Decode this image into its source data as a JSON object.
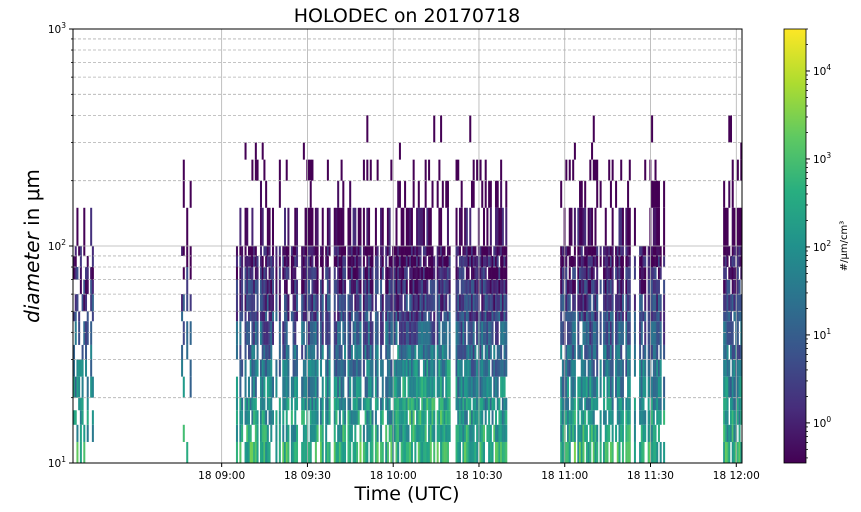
{
  "chart_data": {
    "type": "heatmap",
    "title": "HOLODEC on 20170718",
    "xlabel": "Time (UTC)",
    "ylabel": {
      "italic": "diameter",
      "rest": " in μm"
    },
    "x_range_minutes": [
      488,
      722
    ],
    "x_ticks": [
      {
        "minutes": 540,
        "label": "18 09:00"
      },
      {
        "minutes": 570,
        "label": "18 09:30"
      },
      {
        "minutes": 600,
        "label": "18 10:00"
      },
      {
        "minutes": 630,
        "label": "18 10:30"
      },
      {
        "minutes": 660,
        "label": "18 11:00"
      },
      {
        "minutes": 690,
        "label": "18 11:30"
      },
      {
        "minutes": 720,
        "label": "18 12:00"
      }
    ],
    "y_scale": "log",
    "ylim": [
      10,
      1000
    ],
    "y_ticks": [
      {
        "value": 10,
        "base": "10",
        "exp": "1"
      },
      {
        "value": 100,
        "base": "10",
        "exp": "2"
      },
      {
        "value": 1000,
        "base": "10",
        "exp": "3"
      }
    ],
    "grid": true,
    "colormap": "viridis",
    "colorbar": {
      "label": "#/μm/cm³",
      "scale": "log",
      "range": [
        0.35,
        30000
      ],
      "ticks": [
        {
          "value": 1,
          "base": "10",
          "exp": "0"
        },
        {
          "value": 10,
          "base": "10",
          "exp": "1"
        },
        {
          "value": 100,
          "base": "10",
          "exp": "2"
        },
        {
          "value": 1000,
          "base": "10",
          "exp": "3"
        },
        {
          "value": 10000,
          "base": "10",
          "exp": "4"
        }
      ]
    },
    "size_bins_um": [
      10,
      12.5,
      15,
      17.5,
      20,
      25,
      30,
      35,
      45,
      50,
      60,
      70,
      80,
      90,
      100,
      150,
      200,
      250,
      300,
      400
    ],
    "observation_segments_minutes": [
      [
        488,
        495
      ],
      [
        525,
        529
      ],
      [
        545,
        612
      ],
      [
        612,
        640
      ],
      [
        658,
        695
      ],
      [
        715,
        722
      ]
    ],
    "peak_concentration_region": {
      "time_minutes": [
        600,
        620
      ],
      "diameter_um": [
        15,
        30
      ],
      "concentration": 3000
    }
  }
}
